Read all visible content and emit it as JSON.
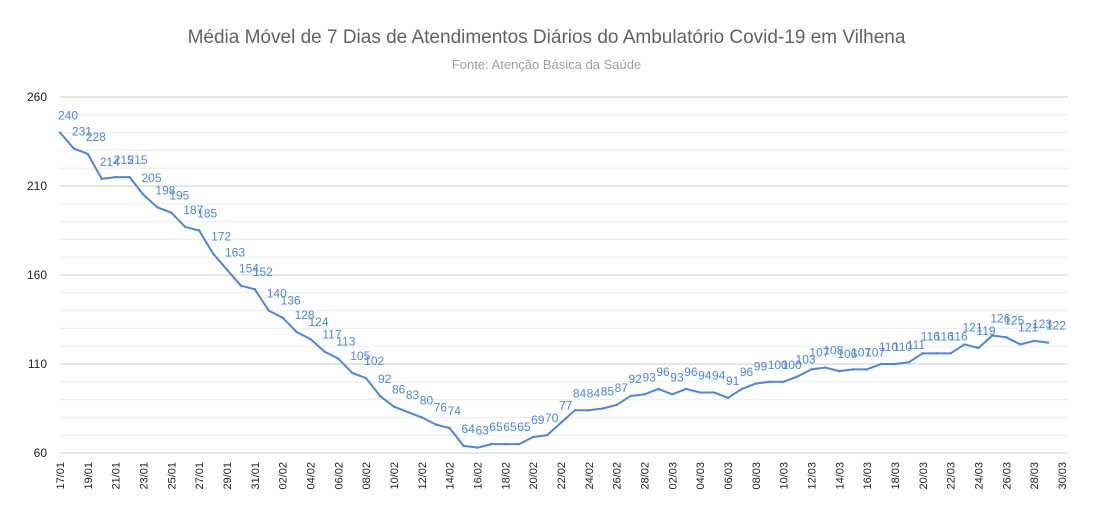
{
  "chart_data": {
    "type": "line",
    "title": "Média Móvel de 7 Dias de Atendimentos Diários do Ambulatório Covid-19 em Vilhena",
    "subtitle": "Fonte: Atenção Básica da Saúde",
    "xlabel": "",
    "ylabel": "",
    "ylim": [
      60,
      260
    ],
    "y_ticks": [
      60,
      110,
      160,
      210,
      260
    ],
    "grid": true,
    "line_color": "#4a86e8",
    "x": [
      "17/01",
      "18/01",
      "19/01",
      "20/01",
      "21/01",
      "22/01",
      "23/01",
      "24/01",
      "25/01",
      "26/01",
      "27/01",
      "28/01",
      "29/01",
      "30/01",
      "31/01",
      "01/02",
      "02/02",
      "03/02",
      "04/02",
      "05/02",
      "06/02",
      "07/02",
      "08/02",
      "09/02",
      "10/02",
      "11/02",
      "12/02",
      "13/02",
      "14/02",
      "15/02",
      "16/02",
      "17/02",
      "18/02",
      "19/02",
      "20/02",
      "21/02",
      "22/02",
      "23/02",
      "24/02",
      "25/02",
      "26/02",
      "27/02",
      "28/02",
      "01/03",
      "02/03",
      "03/03",
      "04/03",
      "05/03",
      "06/03",
      "07/03",
      "08/03",
      "09/03",
      "10/03",
      "11/03",
      "12/03",
      "13/03",
      "14/03",
      "15/03",
      "16/03",
      "17/03",
      "18/03",
      "19/03",
      "20/03",
      "21/03",
      "22/03",
      "23/03",
      "24/03",
      "25/03",
      "26/03",
      "27/03",
      "28/03",
      "29/03"
    ],
    "x_tick_labels": [
      "17/01",
      "19/01",
      "21/01",
      "23/01",
      "25/01",
      "27/01",
      "29/01",
      "31/01",
      "02/02",
      "04/02",
      "06/02",
      "08/02",
      "10/02",
      "12/02",
      "14/02",
      "16/02",
      "18/02",
      "20/02",
      "22/02",
      "24/02",
      "26/02",
      "28/02",
      "02/03",
      "04/03",
      "06/03",
      "08/03",
      "10/03",
      "12/03",
      "14/03",
      "16/03",
      "18/03",
      "20/03",
      "22/03",
      "24/03",
      "26/03",
      "28/03",
      "30/03"
    ],
    "values": [
      240,
      231,
      228,
      214,
      215,
      215,
      205,
      198,
      195,
      187,
      185,
      172,
      163,
      154,
      152,
      140,
      136,
      128,
      124,
      117,
      113,
      105,
      102,
      92,
      86,
      83,
      80,
      76,
      74,
      64,
      63,
      65,
      65,
      65,
      69,
      70,
      77,
      84,
      84,
      85,
      87,
      92,
      93,
      96,
      93,
      96,
      94,
      94,
      91,
      96,
      99,
      100,
      100,
      103,
      107,
      108,
      106,
      107,
      107,
      110,
      110,
      111,
      116,
      116,
      116,
      121,
      119,
      126,
      125,
      121,
      123,
      122
    ],
    "data_labels": [
      "240",
      "231",
      "228",
      "214",
      "215",
      "215",
      "205",
      "198",
      "195",
      "187",
      "185",
      "172",
      "163",
      "154",
      "152",
      "140",
      "136",
      "128",
      "124",
      "117",
      "113",
      "105",
      "102",
      "92",
      "86",
      "83",
      "80",
      "76",
      "74",
      "64",
      "63",
      "65",
      "65",
      "65",
      "69",
      "70",
      "77",
      "84",
      "84",
      "85",
      "87",
      "92",
      "93",
      "96",
      "93",
      "96",
      "94",
      "94",
      "91",
      "96",
      "99",
      "100",
      "100",
      "103",
      "107",
      "108",
      "106",
      "107",
      "107",
      "110",
      "110",
      "111",
      "116",
      "116",
      "116",
      "121",
      "119",
      "126",
      "125",
      "121",
      "123",
      "122"
    ]
  }
}
